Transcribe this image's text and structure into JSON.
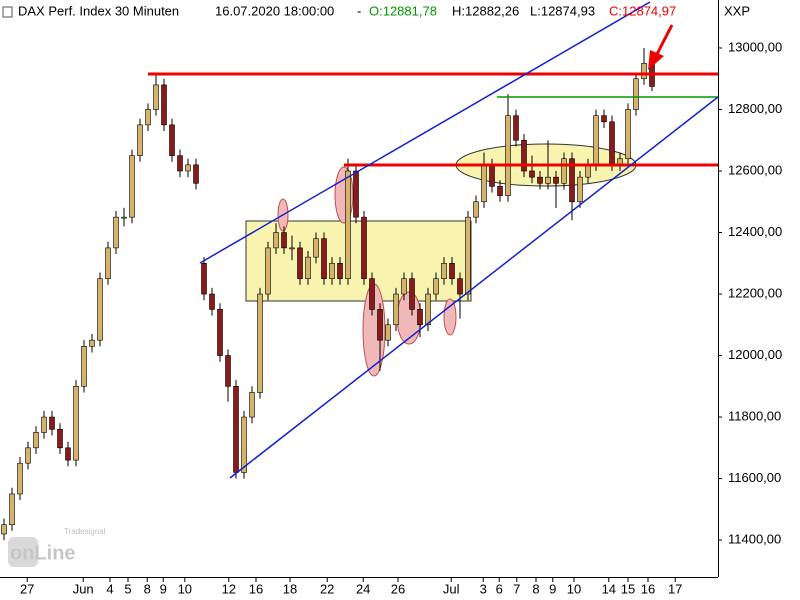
{
  "chart_data": {
    "type": "candlestick",
    "title": "DAX Perf. Index 30 Minuten",
    "timestamp": "16.07.2020 18:00:00",
    "open_label": "O:12881,78",
    "high_label": "H:12882,26",
    "low_label": "L:12874,93",
    "close_label": "C:12874,97",
    "symbol": "XXP",
    "up_color": "#d4b46a",
    "down_color": "#8b1a1a",
    "ohlc": [
      [
        11420,
        11470,
        11400,
        11450
      ],
      [
        11450,
        11570,
        11430,
        11550
      ],
      [
        11550,
        11670,
        11530,
        11650
      ],
      [
        11650,
        11720,
        11630,
        11700
      ],
      [
        11700,
        11770,
        11680,
        11750
      ],
      [
        11750,
        11820,
        11730,
        11800
      ],
      [
        11800,
        11820,
        11740,
        11760
      ],
      [
        11760,
        11780,
        11680,
        11700
      ],
      [
        11700,
        11720,
        11640,
        11660
      ],
      [
        11660,
        11920,
        11640,
        11900
      ],
      [
        11900,
        12050,
        11880,
        12030
      ],
      [
        12030,
        12070,
        12010,
        12050
      ],
      [
        12050,
        12270,
        12030,
        12250
      ],
      [
        12250,
        12370,
        12230,
        12350
      ],
      [
        12350,
        12470,
        12330,
        12450
      ],
      [
        12450,
        12480,
        12420,
        12450
      ],
      [
        12450,
        12670,
        12430,
        12650
      ],
      [
        12650,
        12770,
        12630,
        12750
      ],
      [
        12750,
        12820,
        12730,
        12800
      ],
      [
        12800,
        12910,
        12780,
        12880
      ],
      [
        12880,
        12900,
        12730,
        12750
      ],
      [
        12750,
        12770,
        12630,
        12650
      ],
      [
        12650,
        12670,
        12580,
        12600
      ],
      [
        12600,
        12640,
        12580,
        12620
      ],
      [
        12620,
        12640,
        12540,
        12560
      ],
      [
        12300,
        12320,
        12180,
        12200
      ],
      [
        12200,
        12220,
        12130,
        12150
      ],
      [
        12150,
        12170,
        11980,
        12000
      ],
      [
        12000,
        12020,
        11850,
        11900
      ],
      [
        11900,
        11920,
        11600,
        11620
      ],
      [
        11620,
        11820,
        11600,
        11800
      ],
      [
        11800,
        11900,
        11780,
        11880
      ],
      [
        11880,
        12220,
        11860,
        12200
      ],
      [
        12200,
        12370,
        12180,
        12350
      ],
      [
        12350,
        12430,
        12330,
        12400
      ],
      [
        12400,
        12420,
        12330,
        12350
      ],
      [
        12350,
        12390,
        12310,
        12350
      ],
      [
        12350,
        12370,
        12230,
        12250
      ],
      [
        12250,
        12340,
        12230,
        12320
      ],
      [
        12320,
        12400,
        12300,
        12380
      ],
      [
        12380,
        12400,
        12230,
        12250
      ],
      [
        12250,
        12320,
        12230,
        12300
      ],
      [
        12300,
        12320,
        12230,
        12250
      ],
      [
        12250,
        12640,
        12230,
        12600
      ],
      [
        12600,
        12620,
        12430,
        12450
      ],
      [
        12450,
        12470,
        12230,
        12250
      ],
      [
        12250,
        12270,
        12130,
        12150
      ],
      [
        12150,
        12170,
        11950,
        12050
      ],
      [
        12050,
        12120,
        12030,
        12100
      ],
      [
        12100,
        12220,
        12080,
        12200
      ],
      [
        12200,
        12270,
        12180,
        12250
      ],
      [
        12250,
        12270,
        12130,
        12150
      ],
      [
        12150,
        12170,
        12060,
        12100
      ],
      [
        12100,
        12220,
        12080,
        12200
      ],
      [
        12200,
        12270,
        12180,
        12250
      ],
      [
        12250,
        12320,
        12230,
        12300
      ],
      [
        12300,
        12320,
        12230,
        12250
      ],
      [
        12250,
        12270,
        12120,
        12200
      ],
      [
        12200,
        12470,
        12180,
        12450
      ],
      [
        12450,
        12520,
        12430,
        12500
      ],
      [
        12500,
        12660,
        12480,
        12620
      ],
      [
        12620,
        12640,
        12530,
        12550
      ],
      [
        12550,
        12570,
        12500,
        12520
      ],
      [
        12520,
        12850,
        12500,
        12780
      ],
      [
        12780,
        12800,
        12680,
        12700
      ],
      [
        12700,
        12720,
        12580,
        12600
      ],
      [
        12600,
        12650,
        12560,
        12580
      ],
      [
        12580,
        12600,
        12540,
        12560
      ],
      [
        12560,
        12700,
        12540,
        12580
      ],
      [
        12580,
        12600,
        12480,
        12560
      ],
      [
        12560,
        12660,
        12540,
        12640
      ],
      [
        12640,
        12660,
        12440,
        12500
      ],
      [
        12500,
        12600,
        12480,
        12580
      ],
      [
        12580,
        12640,
        12560,
        12620
      ],
      [
        12620,
        12800,
        12600,
        12780
      ],
      [
        12780,
        12800,
        12740,
        12760
      ],
      [
        12760,
        12780,
        12600,
        12620
      ],
      [
        12620,
        12660,
        12600,
        12640
      ],
      [
        12640,
        12820,
        12620,
        12800
      ],
      [
        12800,
        12920,
        12780,
        12900
      ],
      [
        12900,
        13000,
        12880,
        12950
      ],
      [
        12950,
        12960,
        12860,
        12875
      ]
    ],
    "xlim": [
      0,
      89.75
    ],
    "xticks": [
      {
        "value": 3.4,
        "label": "27"
      },
      {
        "value": 10.4,
        "label": "Jun"
      },
      {
        "value": 13.75,
        "label": "4"
      },
      {
        "value": 16,
        "label": "5"
      },
      {
        "value": 18.4,
        "label": "8"
      },
      {
        "value": 20.4,
        "label": "9"
      },
      {
        "value": 23.1,
        "label": "10"
      },
      {
        "value": 28.6,
        "label": "12"
      },
      {
        "value": 32,
        "label": "16"
      },
      {
        "value": 36.25,
        "label": "18"
      },
      {
        "value": 40.9,
        "label": "22"
      },
      {
        "value": 45.4,
        "label": "24"
      },
      {
        "value": 49.75,
        "label": "26"
      },
      {
        "value": 56.4,
        "label": "Jul"
      },
      {
        "value": 60.4,
        "label": "3"
      },
      {
        "value": 62.4,
        "label": "6"
      },
      {
        "value": 64.6,
        "label": "7"
      },
      {
        "value": 67,
        "label": "8"
      },
      {
        "value": 69.1,
        "label": "9"
      },
      {
        "value": 71.75,
        "label": "10"
      },
      {
        "value": 76.1,
        "label": "14"
      },
      {
        "value": 78.5,
        "label": "15"
      },
      {
        "value": 81,
        "label": "16"
      },
      {
        "value": 84.4,
        "label": "17"
      }
    ],
    "ylim": [
      11280,
      13156
    ],
    "yticks": [
      {
        "value": 11400,
        "label": "11400,00"
      },
      {
        "value": 11600,
        "label": "11600,00"
      },
      {
        "value": 11800,
        "label": "11800,00"
      },
      {
        "value": 12000,
        "label": "12000,00"
      },
      {
        "value": 12200,
        "label": "12200,00"
      },
      {
        "value": 12400,
        "label": "12400,00"
      },
      {
        "value": 12600,
        "label": "12600,00"
      },
      {
        "value": 12800,
        "label": "12800,00"
      },
      {
        "value": 13000,
        "label": "13000,00"
      }
    ]
  },
  "logo": {
    "brand": "Tradesignal",
    "name": "onLine"
  }
}
